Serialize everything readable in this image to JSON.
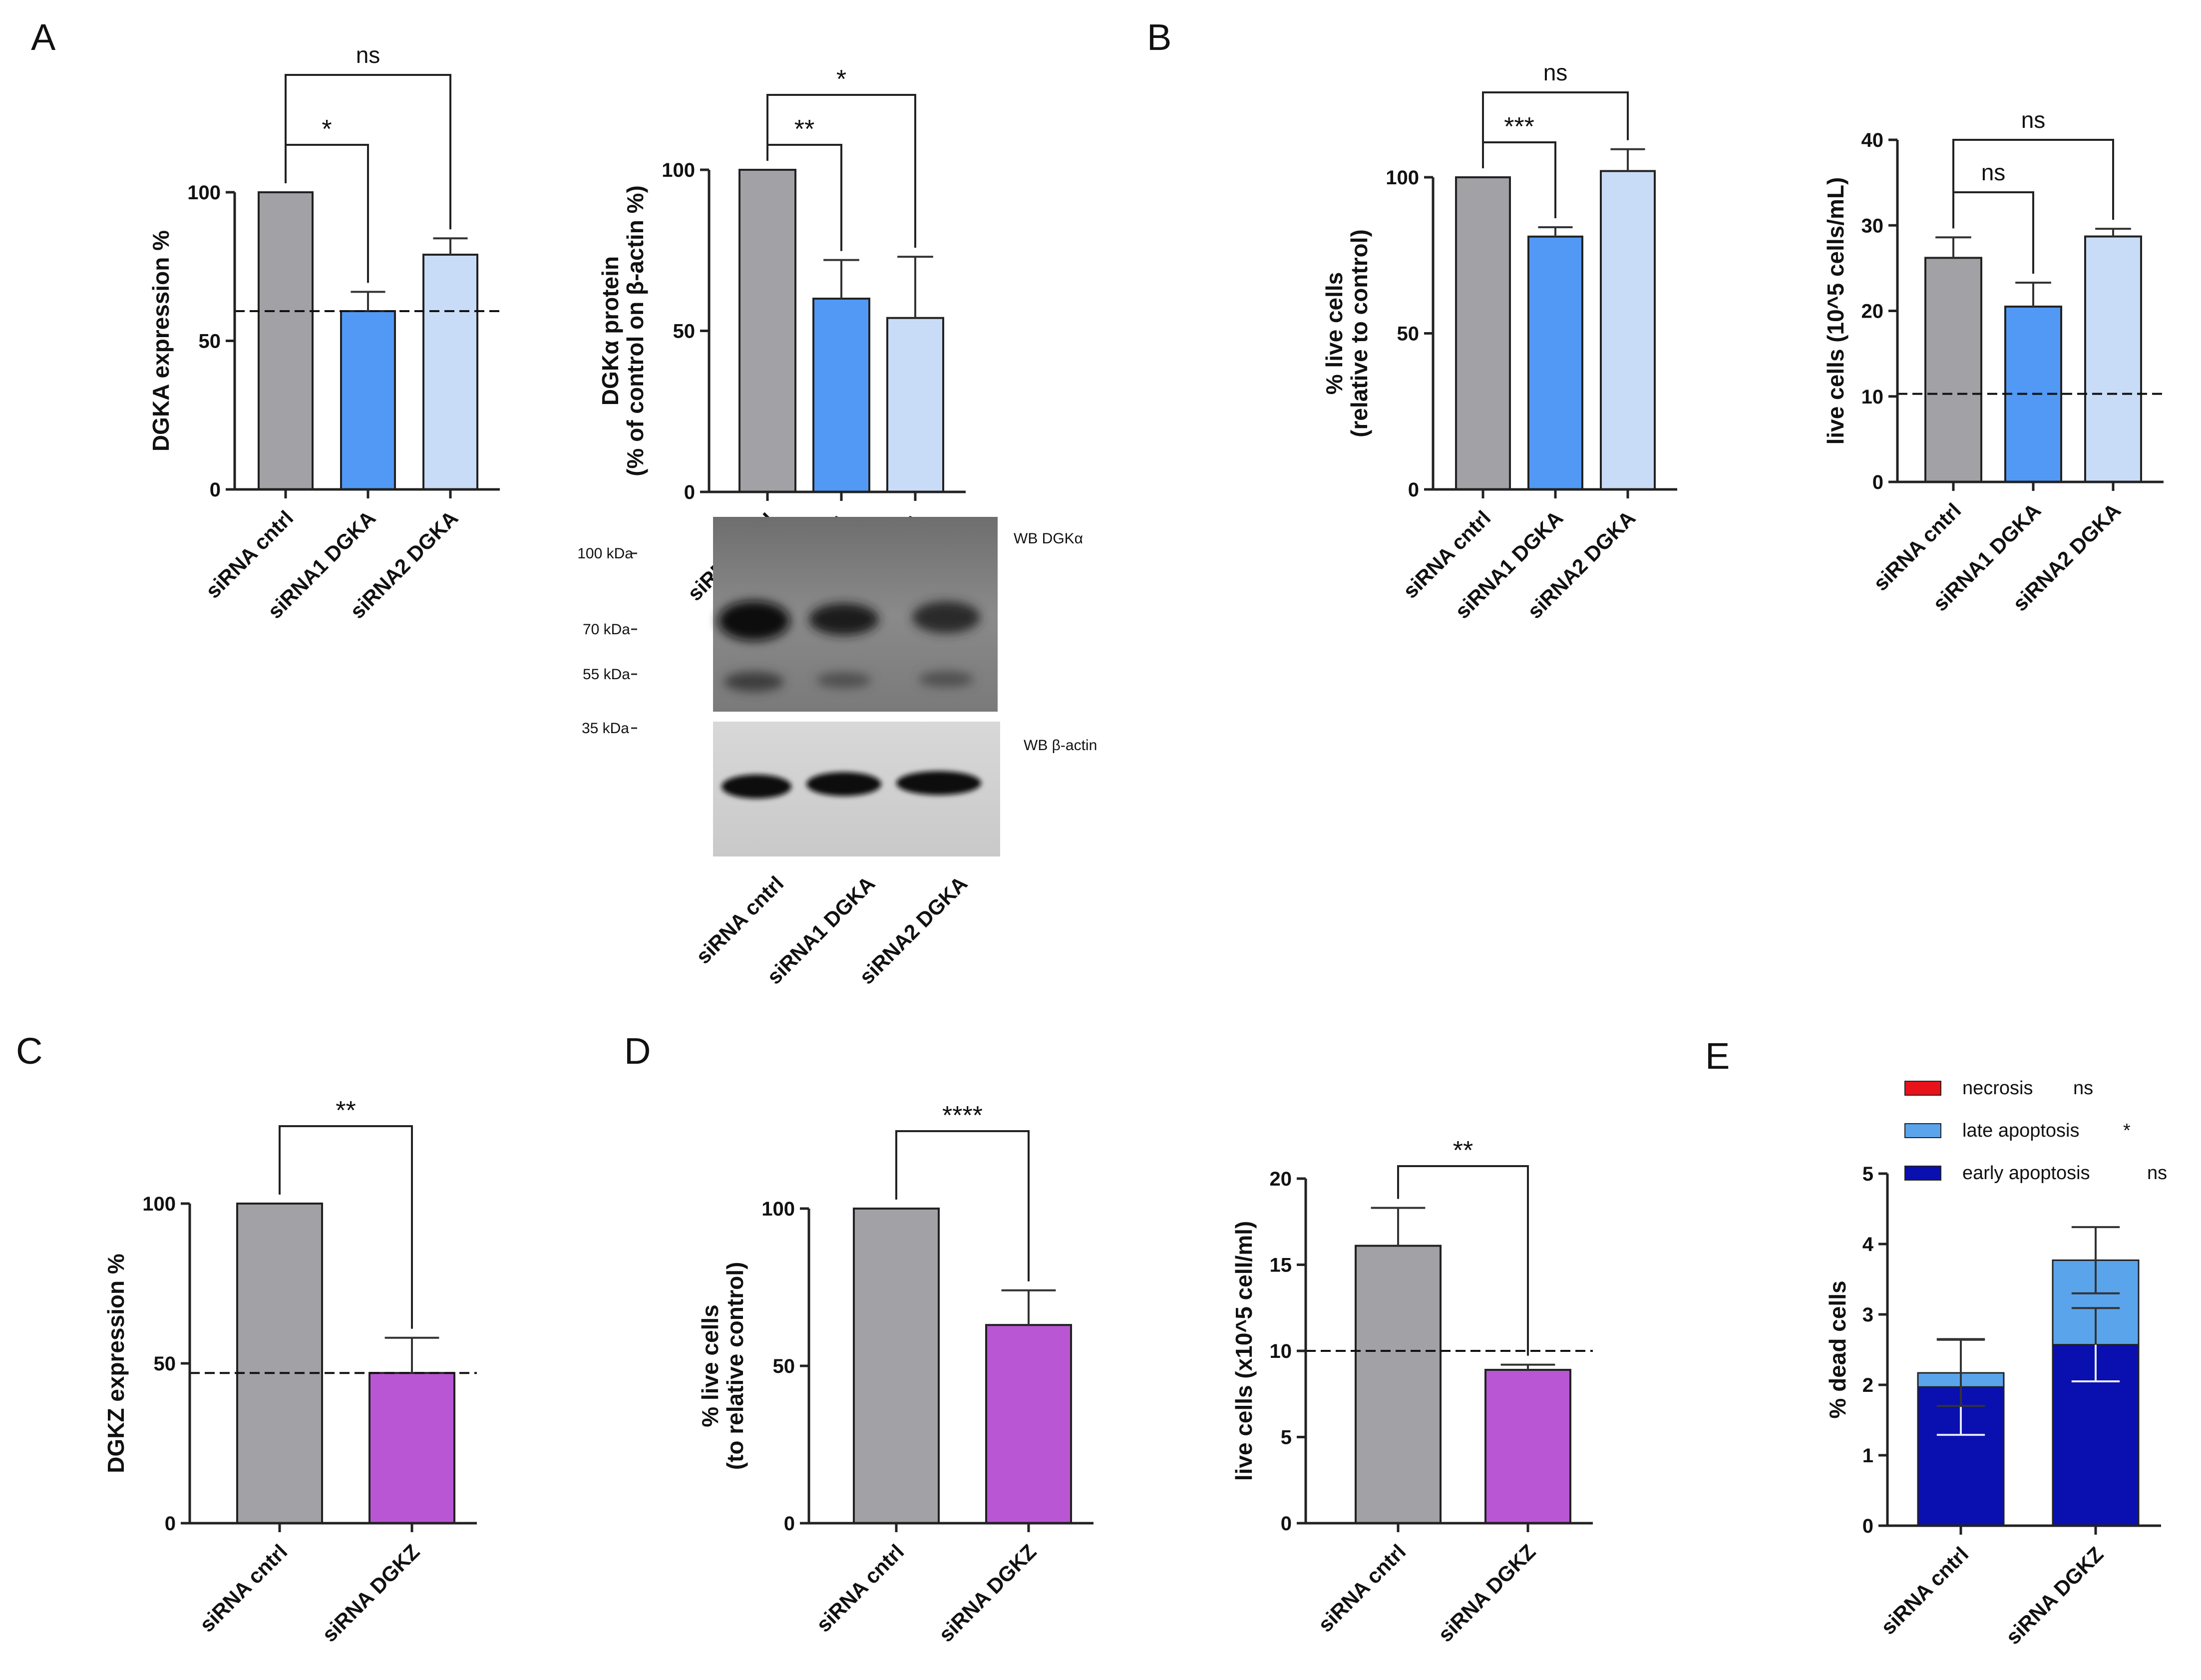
{
  "panel_letters": [
    "A",
    "B",
    "C",
    "D",
    "E"
  ],
  "colors": {
    "control": "#a2a1a6",
    "sirna1": "#5199f5",
    "sirna2": "#c9dcf7",
    "dgkz": "#b956d4",
    "necrosis": "#e8121b",
    "late_apoptosis": "#5aa4ec",
    "early_apoptosis": "#0a10b0",
    "axis": "#222222"
  },
  "chart_data": [
    {
      "id": "A1",
      "panel": "A",
      "type": "bar",
      "title": "",
      "ylabel": "DGKA expression %",
      "xlabel": "",
      "categories": [
        "siRNA cntrl",
        "siRNA1 DGKA",
        "siRNA2 DGKA"
      ],
      "values": [
        100,
        60,
        79
      ],
      "errors": [
        0,
        6.5,
        5.5
      ],
      "color_keys": [
        "control",
        "sirna1",
        "sirna2"
      ],
      "ylim": [
        0,
        100
      ],
      "yticks": [
        0,
        50,
        100
      ],
      "reference_line": 60,
      "significance": [
        {
          "from": 0,
          "to": 1,
          "label": "*",
          "level": 1
        },
        {
          "from": 0,
          "to": 2,
          "label": "ns",
          "level": 2
        }
      ]
    },
    {
      "id": "A2",
      "panel": "A",
      "type": "bar",
      "title": "",
      "ylabel": "DGKα protein",
      "ylabel2": "(% of control on β-actin %)",
      "xlabel": "",
      "categories": [
        "siRNA cntrl",
        "siRNA1 DGKA",
        "siRNA2 DGKA"
      ],
      "values": [
        100,
        60,
        54
      ],
      "errors": [
        0,
        12,
        19
      ],
      "color_keys": [
        "control",
        "sirna1",
        "sirna2"
      ],
      "ylim": [
        0,
        100
      ],
      "yticks": [
        0,
        50,
        100
      ],
      "significance": [
        {
          "from": 0,
          "to": 1,
          "label": "**",
          "level": 1
        },
        {
          "from": 0,
          "to": 2,
          "label": "*",
          "level": 2
        }
      ]
    },
    {
      "id": "B1",
      "panel": "B",
      "type": "bar",
      "title": "",
      "ylabel": "% live cells",
      "ylabel2": "(relative to control)",
      "xlabel": "",
      "categories": [
        "siRNA cntrl",
        "siRNA1 DGKA",
        "siRNA2 DGKA"
      ],
      "values": [
        100,
        81,
        102
      ],
      "errors": [
        0,
        3,
        7
      ],
      "color_keys": [
        "control",
        "sirna1",
        "sirna2"
      ],
      "ylim": [
        0,
        100
      ],
      "yticks": [
        0,
        50,
        100
      ],
      "significance": [
        {
          "from": 0,
          "to": 1,
          "label": "***",
          "level": 1
        },
        {
          "from": 0,
          "to": 2,
          "label": "ns",
          "level": 2
        }
      ]
    },
    {
      "id": "B2",
      "panel": "B",
      "type": "bar",
      "title": "",
      "ylabel": "live cells (10^5 cells/mL)",
      "xlabel": "",
      "categories": [
        "siRNA cntrl",
        "siRNA1 DGKA",
        "siRNA2 DGKA"
      ],
      "values": [
        26.2,
        20.5,
        28.7
      ],
      "errors": [
        2.4,
        2.8,
        0.9
      ],
      "color_keys": [
        "control",
        "sirna1",
        "sirna2"
      ],
      "ylim": [
        0,
        40
      ],
      "yticks": [
        0,
        10,
        20,
        30,
        40
      ],
      "reference_line": 10.3,
      "significance": [
        {
          "from": 0,
          "to": 1,
          "label": "ns",
          "level": 1
        },
        {
          "from": 0,
          "to": 2,
          "label": "ns",
          "level": 2
        }
      ]
    },
    {
      "id": "C",
      "panel": "C",
      "type": "bar",
      "title": "",
      "ylabel": "DGKZ expression %",
      "xlabel": "",
      "categories": [
        "siRNA cntrl",
        "siRNA DGKZ"
      ],
      "values": [
        100,
        47
      ],
      "errors": [
        0,
        11
      ],
      "color_keys": [
        "control",
        "dgkz"
      ],
      "ylim": [
        0,
        100
      ],
      "yticks": [
        0,
        50,
        100
      ],
      "reference_line": 47,
      "significance": [
        {
          "from": 0,
          "to": 1,
          "label": "**",
          "level": 1
        }
      ]
    },
    {
      "id": "D1",
      "panel": "D",
      "type": "bar",
      "title": "",
      "ylabel": "% live cells",
      "ylabel2": "(to relative control)",
      "xlabel": "",
      "categories": [
        "siRNA cntrl",
        "siRNA DGKZ"
      ],
      "values": [
        100,
        63
      ],
      "errors": [
        0,
        11
      ],
      "color_keys": [
        "control",
        "dgkz"
      ],
      "ylim": [
        0,
        100
      ],
      "yticks": [
        0,
        50,
        100
      ],
      "significance": [
        {
          "from": 0,
          "to": 1,
          "label": "****",
          "level": 1
        }
      ]
    },
    {
      "id": "D2",
      "panel": "D",
      "type": "bar",
      "title": "",
      "ylabel": "live cells (x10^5 cell/ml)",
      "xlabel": "",
      "categories": [
        "siRNA cntrl",
        "siRNA DGKZ"
      ],
      "values": [
        16.1,
        8.9
      ],
      "errors": [
        2.2,
        0.3
      ],
      "color_keys": [
        "control",
        "dgkz"
      ],
      "ylim": [
        0,
        20
      ],
      "yticks": [
        0,
        5,
        10,
        15,
        20
      ],
      "reference_line": 10,
      "significance": [
        {
          "from": 0,
          "to": 1,
          "label": "**",
          "level": 1
        }
      ]
    },
    {
      "id": "E",
      "panel": "E",
      "type": "stacked_bar",
      "title": "",
      "ylabel": "% dead cells",
      "xlabel": "",
      "categories": [
        "siRNA cntrl",
        "siRNA DGKZ"
      ],
      "series": [
        {
          "name": "early apoptosis",
          "sig": "ns",
          "color_key": "early_apoptosis",
          "values": [
            1.97,
            2.57
          ],
          "errors": [
            0.68,
            0.52
          ]
        },
        {
          "name": "late apoptosis",
          "sig": "*",
          "color_key": "late_apoptosis",
          "values": [
            0.2,
            1.2
          ],
          "errors": [
            0.47,
            0.47
          ]
        },
        {
          "name": "necrosis",
          "sig": "ns",
          "color_key": "necrosis",
          "values": [
            0,
            0
          ],
          "errors": [
            0,
            0
          ]
        }
      ],
      "legend_order": [
        "necrosis",
        "late apoptosis",
        "early apoptosis"
      ],
      "ylim": [
        0,
        5
      ],
      "yticks": [
        0,
        1,
        2,
        3,
        4,
        5
      ]
    }
  ],
  "western_blot": {
    "top_blot_label": "WB DGKα",
    "bottom_blot_label": "WB β-actin",
    "markers": [
      "100 kDa",
      "70 kDa",
      "55 kDa",
      "35 kDa"
    ],
    "lanes": [
      "siRNA cntrl",
      "siRNA1 DGKA",
      "siRNA2 DGKA"
    ]
  }
}
